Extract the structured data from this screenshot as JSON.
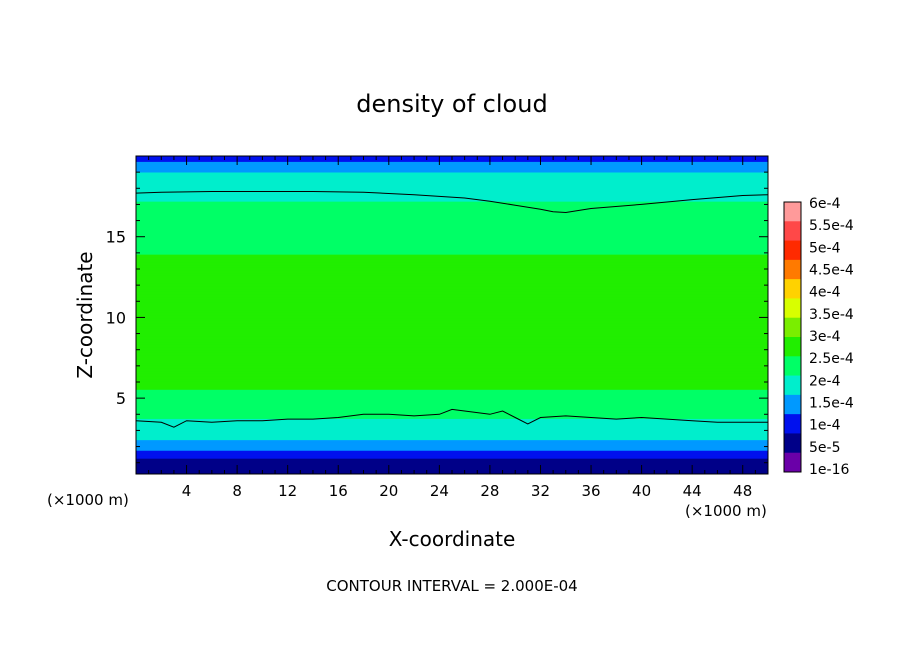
{
  "chart_data": {
    "type": "heatmap",
    "title": "density of cloud",
    "xlabel": "X-coordinate",
    "ylabel": "Z-coordinate",
    "x_unit_left": "(×1000 m)",
    "x_unit_right": "(×1000 m)",
    "xlim": [
      0,
      50
    ],
    "ylim": [
      0.3,
      20
    ],
    "x_ticks": [
      4,
      8,
      12,
      16,
      20,
      24,
      28,
      32,
      36,
      40,
      44,
      48
    ],
    "y_ticks": [
      5,
      10,
      15
    ],
    "footer": "CONTOUR INTERVAL = 2.000E-04",
    "colorbar": {
      "labels": [
        "6e-4",
        "5.5e-4",
        "5e-4",
        "4.5e-4",
        "4e-4",
        "3.5e-4",
        "3e-4",
        "2.5e-4",
        "2e-4",
        "1.5e-4",
        "1e-4",
        "5e-5",
        "1e-16"
      ],
      "colors": [
        "#ff9a9a",
        "#ff4848",
        "#ff2a00",
        "#ff7a00",
        "#ffd200",
        "#d8ff00",
        "#7aee00",
        "#21ee00",
        "#00ff66",
        "#00eecc",
        "#0099ff",
        "#0011ee",
        "#000088",
        "#6a00a8"
      ]
    },
    "contour_lines": [
      {
        "level": "2.000E-04",
        "x": [
          0,
          2,
          6,
          10,
          14,
          18,
          22,
          26,
          28,
          30,
          32,
          33,
          34,
          36,
          40,
          44,
          48,
          50
        ],
        "z": [
          17.7,
          17.75,
          17.8,
          17.8,
          17.8,
          17.75,
          17.6,
          17.4,
          17.2,
          16.95,
          16.7,
          16.55,
          16.5,
          16.75,
          17.0,
          17.3,
          17.55,
          17.6
        ]
      },
      {
        "level": "2.000E-04",
        "x": [
          0,
          2,
          3,
          4,
          6,
          8,
          10,
          12,
          14,
          16,
          18,
          20,
          22,
          24,
          25,
          26,
          28,
          29,
          30,
          31,
          32,
          34,
          36,
          38,
          40,
          42,
          44,
          46,
          48,
          50
        ],
        "z": [
          3.6,
          3.5,
          3.2,
          3.6,
          3.5,
          3.6,
          3.6,
          3.7,
          3.7,
          3.8,
          4.0,
          4.0,
          3.9,
          4.0,
          4.3,
          4.2,
          4.0,
          4.2,
          3.8,
          3.4,
          3.8,
          3.9,
          3.8,
          3.7,
          3.8,
          3.7,
          3.6,
          3.5,
          3.5,
          3.5
        ]
      }
    ],
    "vertical_profile": {
      "z": [
        0.3,
        0.9,
        1.3,
        1.7,
        2.1,
        2.5,
        3.0,
        3.5,
        4.0,
        5.0,
        6.0,
        7.0,
        8.0,
        9.0,
        10.0,
        11.0,
        12.0,
        13.0,
        14.0,
        15.0,
        16.0,
        17.0,
        17.8,
        18.5,
        19.0,
        19.5,
        20.0
      ],
      "density": [
        0,
        8e-06,
        6e-05,
        0.0001,
        0.00013,
        0.00015,
        0.00017,
        0.00019,
        0.00021,
        0.00024,
        0.00026,
        0.000275,
        0.000285,
        0.00029,
        0.000295,
        0.000295,
        0.000285,
        0.00027,
        0.00025,
        0.00024,
        0.00022,
        0.000205,
        0.00019,
        0.00017,
        0.00015,
        0.00012,
        6e-05
      ]
    }
  }
}
